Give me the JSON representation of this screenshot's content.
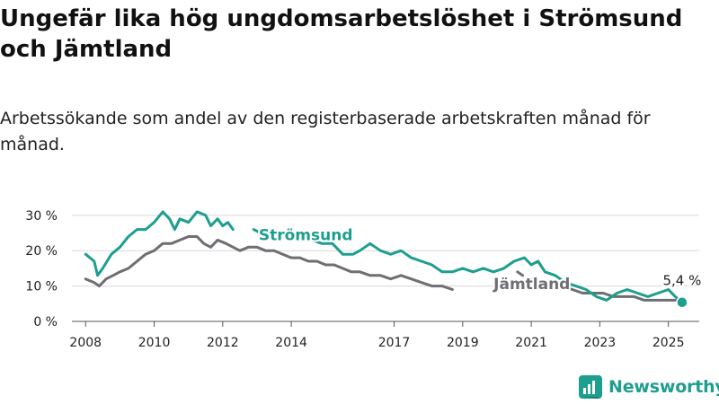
{
  "title": "Ungefär lika hög ungdomsarbetslöshet i Strömsund och Jämtland",
  "subtitle": "Arbetssökande som andel av den registerbaserade arbetskraften månad för månad.",
  "brand": {
    "name": "Newsworthy",
    "color": "#1e9e8f"
  },
  "chart_data": {
    "type": "line",
    "title": "",
    "xlabel": "",
    "ylabel": "",
    "xlim": [
      2007.6,
      2025.9
    ],
    "ylim": [
      0,
      33
    ],
    "y_ticks": [
      0,
      10,
      20,
      30
    ],
    "y_tick_labels": [
      "0 %",
      "10 %",
      "20 %",
      "30 %"
    ],
    "x_ticks": [
      2008,
      2010,
      2012,
      2014,
      2017,
      2019,
      2021,
      2023,
      2025
    ],
    "x_tick_labels": [
      "2008",
      "2010",
      "2012",
      "2014",
      "2017",
      "2019",
      "2021",
      "2023",
      "2025"
    ],
    "grid": true,
    "legend": "inline labels",
    "end_label": "5,4 %",
    "series": [
      {
        "name": "Strömsund",
        "color": "#1e9e8f",
        "points": [
          [
            2008.0,
            19
          ],
          [
            2008.25,
            17
          ],
          [
            2008.35,
            13
          ],
          [
            2008.5,
            15
          ],
          [
            2008.75,
            19
          ],
          [
            2009.0,
            21
          ],
          [
            2009.25,
            24
          ],
          [
            2009.5,
            26
          ],
          [
            2009.75,
            26
          ],
          [
            2010.0,
            28
          ],
          [
            2010.25,
            31
          ],
          [
            2010.45,
            29
          ],
          [
            2010.6,
            26
          ],
          [
            2010.75,
            29
          ],
          [
            2011.0,
            28
          ],
          [
            2011.25,
            31
          ],
          [
            2011.5,
            30
          ],
          [
            2011.65,
            27
          ],
          [
            2011.85,
            29
          ],
          [
            2012.0,
            27
          ],
          [
            2012.15,
            28
          ],
          [
            2012.3,
            26
          ],
          [
            null,
            null
          ],
          [
            2012.9,
            26
          ],
          [
            2013.1,
            25
          ],
          [
            null,
            null
          ],
          [
            2014.3,
            24
          ],
          [
            2014.6,
            23
          ],
          [
            2014.9,
            22
          ],
          [
            2015.2,
            22
          ],
          [
            2015.5,
            19
          ],
          [
            2015.8,
            19
          ],
          [
            2016.0,
            20
          ],
          [
            2016.3,
            22
          ],
          [
            2016.6,
            20
          ],
          [
            2016.9,
            19
          ],
          [
            2017.2,
            20
          ],
          [
            2017.5,
            18
          ],
          [
            2017.8,
            17
          ],
          [
            2018.1,
            16
          ],
          [
            2018.4,
            14
          ],
          [
            2018.7,
            14
          ],
          [
            2019.0,
            15
          ],
          [
            2019.3,
            14
          ],
          [
            2019.6,
            15
          ],
          [
            2019.9,
            14
          ],
          [
            2020.2,
            15
          ],
          [
            2020.5,
            17
          ],
          [
            2020.8,
            18
          ],
          [
            2021.0,
            16
          ],
          [
            2021.2,
            17
          ],
          [
            2021.4,
            14
          ],
          [
            2021.7,
            13
          ],
          [
            2022.0,
            11
          ],
          [
            2022.3,
            10
          ],
          [
            2022.6,
            9
          ],
          [
            2022.9,
            7
          ],
          [
            2023.2,
            6
          ],
          [
            2023.5,
            8
          ],
          [
            2023.8,
            9
          ],
          [
            2024.1,
            8
          ],
          [
            2024.4,
            7
          ],
          [
            2024.7,
            8
          ],
          [
            2025.0,
            9
          ],
          [
            2025.2,
            7
          ],
          [
            2025.4,
            5.4
          ]
        ]
      },
      {
        "name": "Jämtland",
        "color": "#6e6e73",
        "points": [
          [
            2008.0,
            12
          ],
          [
            2008.25,
            11
          ],
          [
            2008.4,
            10
          ],
          [
            2008.6,
            12
          ],
          [
            2008.8,
            13
          ],
          [
            2009.0,
            14
          ],
          [
            2009.25,
            15
          ],
          [
            2009.5,
            17
          ],
          [
            2009.75,
            19
          ],
          [
            2010.0,
            20
          ],
          [
            2010.25,
            22
          ],
          [
            2010.5,
            22
          ],
          [
            2010.75,
            23
          ],
          [
            2011.0,
            24
          ],
          [
            2011.25,
            24
          ],
          [
            2011.45,
            22
          ],
          [
            2011.65,
            21
          ],
          [
            2011.85,
            23
          ],
          [
            2012.1,
            22
          ],
          [
            2012.3,
            21
          ],
          [
            2012.5,
            20
          ],
          [
            2012.75,
            21
          ],
          [
            2013.0,
            21
          ],
          [
            2013.25,
            20
          ],
          [
            2013.5,
            20
          ],
          [
            2013.75,
            19
          ],
          [
            2014.0,
            18
          ],
          [
            2014.25,
            18
          ],
          [
            2014.5,
            17
          ],
          [
            2014.75,
            17
          ],
          [
            2015.0,
            16
          ],
          [
            2015.25,
            16
          ],
          [
            2015.5,
            15
          ],
          [
            2015.75,
            14
          ],
          [
            2016.0,
            14
          ],
          [
            2016.3,
            13
          ],
          [
            2016.6,
            13
          ],
          [
            2016.9,
            12
          ],
          [
            2017.2,
            13
          ],
          [
            2017.5,
            12
          ],
          [
            2017.8,
            11
          ],
          [
            2018.1,
            10
          ],
          [
            2018.4,
            10
          ],
          [
            2018.7,
            9
          ],
          [
            null,
            null
          ],
          [
            2020.6,
            14
          ],
          [
            2020.75,
            13
          ],
          [
            null,
            null
          ],
          [
            2021.05,
            12
          ],
          [
            2021.3,
            11
          ],
          [
            2021.6,
            10
          ],
          [
            2021.9,
            10
          ],
          [
            2022.2,
            9
          ],
          [
            2022.5,
            8
          ],
          [
            2022.8,
            8
          ],
          [
            2023.1,
            8
          ],
          [
            2023.4,
            7
          ],
          [
            2023.7,
            7
          ],
          [
            2024.0,
            7
          ],
          [
            2024.3,
            6
          ],
          [
            2024.6,
            6
          ],
          [
            2024.9,
            6
          ],
          [
            2025.2,
            6
          ],
          [
            2025.4,
            6
          ]
        ]
      }
    ],
    "series_labels": [
      {
        "series": "Strömsund",
        "text": "Strömsund",
        "x": 2013.05,
        "y": 23.0
      },
      {
        "series": "Jämtland",
        "text": "Jämtland",
        "x": 2019.9,
        "y": 9.2
      }
    ]
  }
}
